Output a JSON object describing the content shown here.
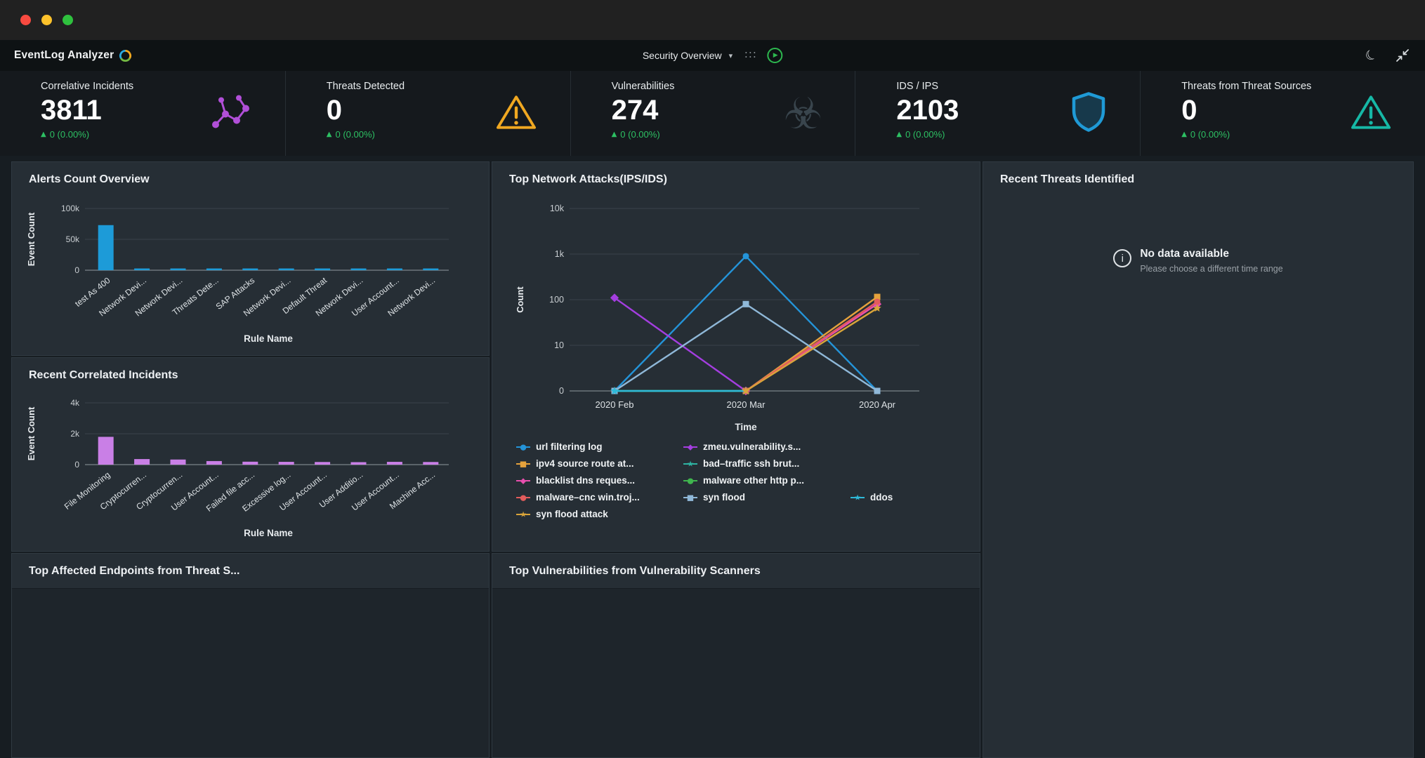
{
  "titlebar": {
    "traffic_lights": [
      "close",
      "minimize",
      "zoom"
    ]
  },
  "header": {
    "app_name": "EventLog Analyzer",
    "view_selector": "Security Overview",
    "icons": [
      "caret-down-icon",
      "drag-dots-icon",
      "play-icon",
      "dark-mode-icon",
      "collapse-icon"
    ]
  },
  "kpis": [
    {
      "label": "Correlative Incidents",
      "value": "3811",
      "delta": "0 (0.00%)",
      "icon": "correlation-icon",
      "icon_color": "#b14fd8"
    },
    {
      "label": "Threats Detected",
      "value": "0",
      "delta": "0 (0.00%)",
      "icon": "warning-triangle-icon",
      "icon_color": "#f0a821"
    },
    {
      "label": "Vulnerabilities",
      "value": "274",
      "delta": "0 (0.00%)",
      "icon": "biohazard-icon",
      "icon_color": "#39454d"
    },
    {
      "label": "IDS / IPS",
      "value": "2103",
      "delta": "0 (0.00%)",
      "icon": "shield-icon",
      "icon_color": "#1f9ad6"
    },
    {
      "label": "Threats from Threat Sources",
      "value": "0",
      "delta": "0 (0.00%)",
      "icon": "warning-triangle-icon",
      "icon_color": "#16b8a6"
    }
  ],
  "trend_color": "#2dc063",
  "panels": {
    "alerts": {
      "title": "Alerts Count Overview"
    },
    "correlated": {
      "title": "Recent Correlated Incidents"
    },
    "attacks": {
      "title": "Top Network Attacks(IPS/IDS)"
    },
    "threats": {
      "title": "Recent Threats Identified",
      "empty_title": "No data available",
      "empty_subtitle": "Please choose a different time range"
    },
    "endpoints": {
      "title": "Top Affected Endpoints from Threat S..."
    },
    "vulnscanners": {
      "title": "Top Vulnerabilities from Vulnerability Scanners"
    }
  },
  "chart_data": [
    {
      "id": "alerts-chart",
      "type": "bar",
      "title": "Alerts Count Overview",
      "categories": [
        "test As 400",
        "Network Devi...",
        "Network Devi...",
        "Threats Dete...",
        "SAP Attacks",
        "Network Devi...",
        "Default Threat",
        "Network Devi...",
        "User Account...",
        "Network Devi..."
      ],
      "values": [
        73000,
        2600,
        2500,
        2400,
        2500,
        2400,
        2500,
        2400,
        2500,
        2400
      ],
      "bar_color": "#1d9bd8",
      "xlabel": "Rule Name",
      "ylabel": "Event Count",
      "yticks": [
        "0",
        "50k",
        "100k"
      ],
      "ylim": [
        0,
        100000
      ],
      "grid": true
    },
    {
      "id": "correlated-chart",
      "type": "bar",
      "title": "Recent Correlated Incidents",
      "categories": [
        "File Monitoring",
        "Cryptocurren...",
        "Cryptocurren...",
        "User Account...",
        "Failed file acc...",
        "Excessive log...",
        "User Account...",
        "User Additio...",
        "User Account...",
        "Machine Acc..."
      ],
      "values": [
        1800,
        360,
        330,
        230,
        190,
        180,
        170,
        160,
        180,
        170
      ],
      "bar_color": "#c97fe6",
      "xlabel": "Rule Name",
      "ylabel": "Event Count",
      "yticks": [
        "0",
        "2k",
        "4k"
      ],
      "ylim": [
        0,
        4000
      ],
      "grid": true
    },
    {
      "id": "attacks-chart",
      "type": "line",
      "title": "Top Network Attacks(IPS/IDS)",
      "x": [
        "2020 Feb",
        "2020 Mar",
        "2020 Apr"
      ],
      "xlabel": "Time",
      "ylabel": "Count",
      "yscale": "log-decades",
      "yticks": [
        "0",
        "10",
        "100",
        "1k",
        "10k"
      ],
      "grid": true,
      "legend_position": "bottom",
      "legend_rows": [
        [
          0,
          1
        ],
        [
          2,
          3
        ],
        [
          4,
          5
        ],
        [
          6,
          7,
          8
        ],
        [
          9
        ]
      ],
      "series": [
        {
          "name": "url filtering log",
          "color": "#2494d9",
          "marker": "circle",
          "values": [
            0,
            900,
            0
          ]
        },
        {
          "name": "zmeu.vulnerability.s...",
          "color": "#a43ee0",
          "marker": "diamond",
          "values": [
            110,
            0,
            null
          ]
        },
        {
          "name": "ipv4 source route at...",
          "color": "#e5a23c",
          "marker": "square",
          "values": [
            null,
            0,
            115
          ]
        },
        {
          "name": "bad–traffic ssh brut...",
          "color": "#2eb3a2",
          "marker": "star",
          "values": [
            0,
            0,
            null
          ]
        },
        {
          "name": "blacklist dns reques...",
          "color": "#e84fae",
          "marker": "diamond",
          "values": [
            null,
            0,
            80
          ]
        },
        {
          "name": "malware other http p...",
          "color": "#3fb54e",
          "marker": "circle",
          "values": [
            0,
            0,
            null
          ]
        },
        {
          "name": "malware–cnc win.troj...",
          "color": "#e25c5c",
          "marker": "circle",
          "values": [
            null,
            0,
            90
          ]
        },
        {
          "name": "syn flood",
          "color": "#8fb8d8",
          "marker": "square",
          "values": [
            0,
            80,
            0
          ]
        },
        {
          "name": "ddos",
          "color": "#2fb9d8",
          "marker": "star",
          "values": [
            0,
            0,
            null
          ]
        },
        {
          "name": "syn flood attack",
          "color": "#d9a43a",
          "marker": "star",
          "values": [
            null,
            0,
            65
          ]
        }
      ]
    }
  ]
}
